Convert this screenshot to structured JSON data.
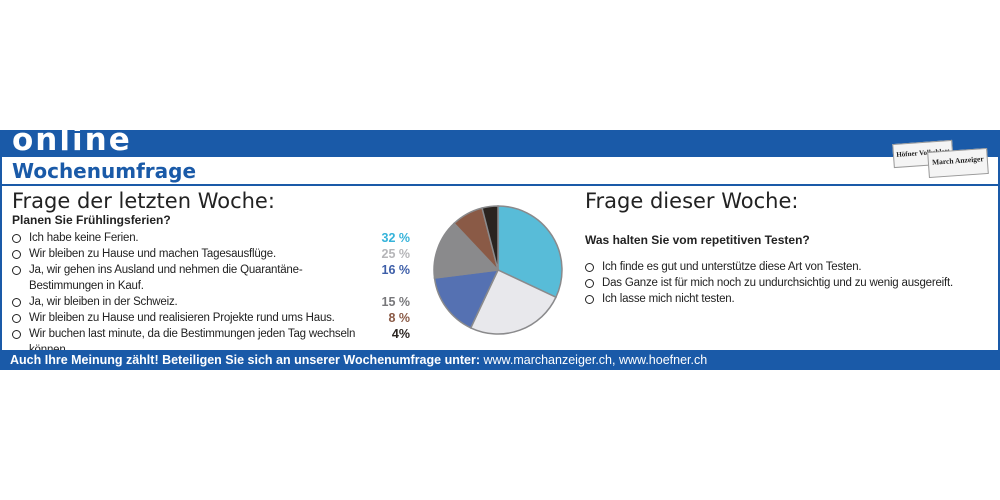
{
  "header": {
    "band": "online",
    "title": "Wochenumfrage",
    "logos": [
      "Höfner Volksblatt",
      "March Anzeiger"
    ]
  },
  "chart_data": {
    "type": "pie",
    "title": "Frage der letzten Woche:",
    "subtitle": "Planen Sie Frühlingsferien?",
    "categories": [
      "Ich habe keine Ferien.",
      "Wir bleiben zu Hause und machen Tagesausflüge.",
      "Ja, wir gehen ins Ausland und nehmen die Quarantäne-Bestimmungen in Kauf.",
      "Ja, wir bleiben in der Schweiz.",
      "Wir bleiben zu Hause und realisieren Projekte rund ums Haus.",
      "Wir buchen last minute, da die Bestimmungen jeden Tag wechseln können."
    ],
    "values": [
      32,
      25,
      16,
      15,
      8,
      4
    ],
    "value_labels": [
      "32 %",
      "25 %",
      "16 %",
      "15 %",
      "8 %",
      "4%"
    ],
    "colors": [
      "#58bcd8",
      "#e8e8ec",
      "#5571b2",
      "#8a8a8c",
      "#8a5a46",
      "#2a2420"
    ],
    "label_colors": [
      "#35b3da",
      "#b5b5b8",
      "#3d5ea8",
      "#77777a",
      "#8a5a46",
      "#2a2420"
    ]
  },
  "current": {
    "title": "Frage dieser Woche:",
    "question": "Was halten Sie vom repetitiven Testen?",
    "options": [
      "Ich finde es gut und unterstütze diese Art von Testen.",
      "Das Ganze ist für mich noch zu undurchsichtig und zu wenig ausgereift.",
      "Ich lasse mich nicht testen."
    ]
  },
  "footer": {
    "call": "Auch Ihre Meinung zählt! Beteiligen Sie sich an unserer Wochenumfrage unter:",
    "links": "www.marchanzeiger.ch, www.hoefner.ch"
  }
}
